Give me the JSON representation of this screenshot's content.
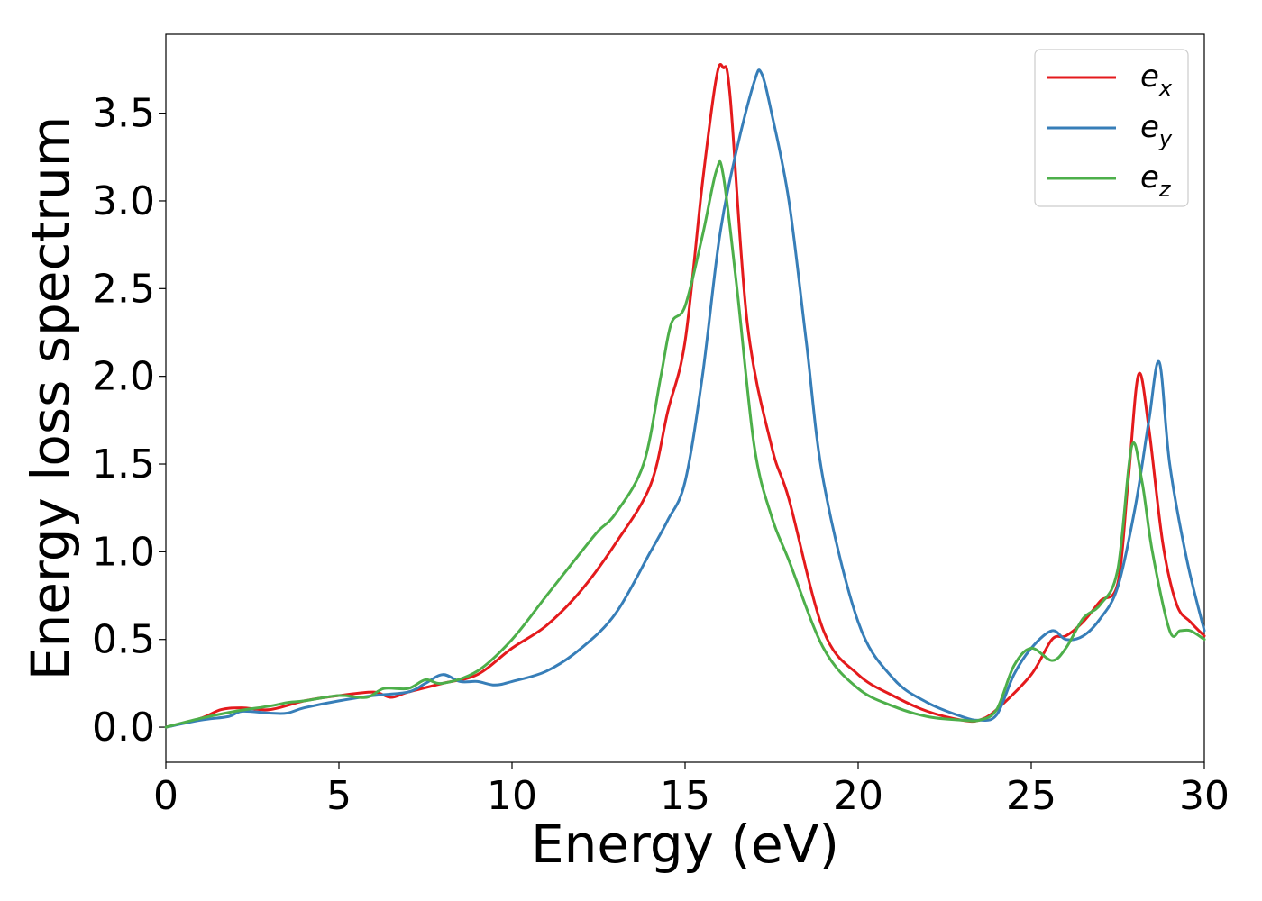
{
  "chart_data": {
    "type": "line",
    "title": "",
    "xlabel": "Energy (eV)",
    "ylabel": "Energy loss spectrum",
    "xlim": [
      0,
      30
    ],
    "ylim": [
      -0.2,
      3.95
    ],
    "xticks": [
      0,
      5,
      10,
      15,
      20,
      25,
      30
    ],
    "xtick_labels": [
      "0",
      "5",
      "10",
      "15",
      "20",
      "25",
      "30"
    ],
    "yticks": [
      0.0,
      0.5,
      1.0,
      1.5,
      2.0,
      2.5,
      3.0,
      3.5
    ],
    "ytick_labels": [
      "0.0",
      "0.5",
      "1.0",
      "1.5",
      "2.0",
      "2.5",
      "3.0",
      "3.5"
    ],
    "grid": false,
    "legend_position": "top-right",
    "series": [
      {
        "name": "e_x",
        "label_base": "e",
        "label_sub": "x",
        "color": "#e41a1c",
        "x": [
          0,
          1,
          1.6,
          2.2,
          3,
          4,
          5,
          6,
          6.5,
          7,
          8,
          9,
          10,
          11,
          12,
          13,
          14,
          14.5,
          15,
          15.5,
          15.9,
          16.1,
          16.3,
          16.8,
          17.5,
          18,
          19,
          20,
          21,
          22,
          23,
          23.5,
          24,
          25,
          25.6,
          26,
          26.5,
          27,
          27.5,
          27.8,
          28.1,
          28.4,
          28.8,
          29.2,
          29.6,
          30
        ],
        "y": [
          0.0,
          0.05,
          0.1,
          0.11,
          0.1,
          0.15,
          0.18,
          0.2,
          0.17,
          0.2,
          0.25,
          0.3,
          0.45,
          0.58,
          0.78,
          1.05,
          1.38,
          1.8,
          2.2,
          3.1,
          3.7,
          3.76,
          3.6,
          2.3,
          1.6,
          1.3,
          0.55,
          0.3,
          0.18,
          0.09,
          0.04,
          0.04,
          0.1,
          0.3,
          0.5,
          0.52,
          0.6,
          0.72,
          0.82,
          1.4,
          2.01,
          1.7,
          1.05,
          0.7,
          0.6,
          0.52
        ]
      },
      {
        "name": "e_y",
        "label_base": "e",
        "label_sub": "y",
        "color": "#377eb8",
        "x": [
          0,
          1,
          1.8,
          2.2,
          3,
          3.5,
          4,
          5,
          6,
          7,
          7.5,
          8,
          8.5,
          9,
          9.5,
          10,
          11,
          12,
          13,
          14,
          14.5,
          15,
          15.5,
          16,
          16.5,
          17,
          17.2,
          17.5,
          18,
          18.5,
          19,
          20,
          21,
          22,
          23,
          23.5,
          24,
          24.5,
          25,
          25.6,
          26,
          26.5,
          27,
          27.5,
          28,
          28.4,
          28.7,
          29,
          29.5,
          30
        ],
        "y": [
          0.0,
          0.04,
          0.06,
          0.09,
          0.08,
          0.08,
          0.11,
          0.15,
          0.18,
          0.2,
          0.25,
          0.3,
          0.26,
          0.26,
          0.24,
          0.26,
          0.32,
          0.45,
          0.65,
          1.0,
          1.18,
          1.4,
          2.0,
          2.8,
          3.3,
          3.68,
          3.73,
          3.5,
          3.0,
          2.2,
          1.4,
          0.6,
          0.28,
          0.14,
          0.06,
          0.04,
          0.07,
          0.3,
          0.45,
          0.55,
          0.5,
          0.52,
          0.62,
          0.8,
          1.25,
          1.75,
          2.08,
          1.5,
          0.95,
          0.55
        ]
      },
      {
        "name": "e_z",
        "label_base": "e",
        "label_sub": "z",
        "color": "#4daf4a",
        "x": [
          0,
          1,
          2,
          3,
          3.5,
          4,
          5,
          5.8,
          6.3,
          7,
          7.5,
          8,
          9,
          10,
          11,
          12,
          12.5,
          13,
          13.8,
          14.3,
          14.6,
          15,
          15.5,
          15.9,
          16.1,
          16.5,
          17,
          17.5,
          18,
          19,
          20,
          21,
          22,
          23,
          23.5,
          24,
          24.5,
          25,
          25.6,
          26,
          26.5,
          27,
          27.5,
          27.9,
          28.2,
          28.5,
          29,
          29.3,
          29.6,
          30
        ],
        "y": [
          0.0,
          0.05,
          0.09,
          0.12,
          0.14,
          0.15,
          0.18,
          0.17,
          0.22,
          0.22,
          0.27,
          0.25,
          0.32,
          0.5,
          0.75,
          1.0,
          1.12,
          1.22,
          1.5,
          2.0,
          2.3,
          2.4,
          2.8,
          3.17,
          3.15,
          2.5,
          1.6,
          1.2,
          0.95,
          0.45,
          0.22,
          0.12,
          0.06,
          0.04,
          0.04,
          0.1,
          0.35,
          0.45,
          0.38,
          0.45,
          0.62,
          0.7,
          0.9,
          1.6,
          1.4,
          1.0,
          0.55,
          0.55,
          0.55,
          0.5
        ]
      }
    ]
  }
}
